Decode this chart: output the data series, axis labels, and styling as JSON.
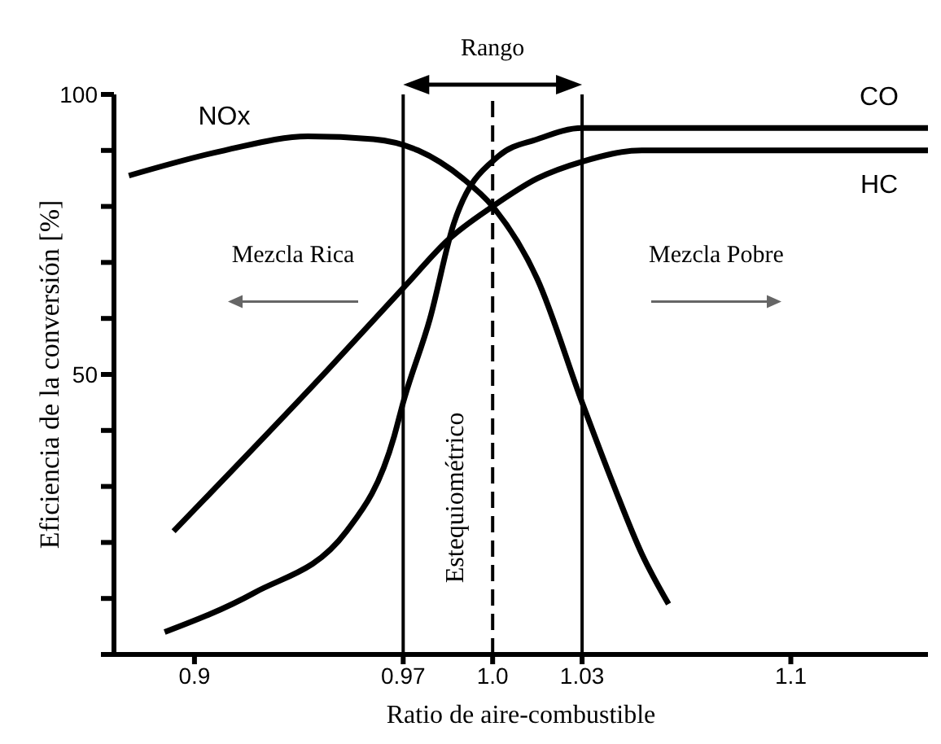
{
  "chart_data": {
    "type": "line",
    "xlabel": "Ratio de aire-combustible",
    "ylabel": "Eficiencia de la conversión [%]",
    "xlim": [
      0.873,
      1.146
    ],
    "ylim": [
      0,
      100
    ],
    "xticks": [
      0.9,
      0.97,
      {
        "value": 1.0,
        "label": "1.0"
      },
      1.03,
      1.1
    ],
    "yticks": [
      {
        "value": 0,
        "label": null
      },
      {
        "value": 10,
        "label": null
      },
      {
        "value": 20,
        "label": null
      },
      {
        "value": 30,
        "label": null
      },
      {
        "value": 40,
        "label": null
      },
      50,
      {
        "value": 60,
        "label": null
      },
      {
        "value": 70,
        "label": null
      },
      {
        "value": 80,
        "label": null
      },
      {
        "value": 90,
        "label": null
      },
      100
    ],
    "series": [
      {
        "name": "NOx",
        "color": "#000000",
        "x": [
          0.878,
          0.91,
          0.938,
          0.96,
          0.975,
          0.99,
          1.0,
          1.015,
          1.03,
          1.04,
          1.05,
          1.059
        ],
        "values": [
          85.5,
          90,
          92.5,
          92,
          90,
          85,
          80,
          67,
          45,
          31,
          18,
          9
        ]
      },
      {
        "name": "CO",
        "color": "#000000",
        "x": [
          0.89,
          0.92,
          0.951,
          0.967,
          0.97,
          0.979,
          0.987,
          1.002,
          1.015,
          1.03,
          1.05,
          1.146
        ],
        "values": [
          4,
          11,
          22,
          39,
          45,
          60,
          77,
          89,
          92,
          94,
          94,
          94
        ]
      },
      {
        "name": "HC",
        "color": "#000000",
        "x": [
          0.893,
          0.945,
          0.971,
          0.985,
          1.0,
          1.015,
          1.03,
          1.05,
          1.146
        ],
        "values": [
          22,
          51,
          66,
          74,
          80,
          85,
          88,
          90,
          90
        ]
      }
    ],
    "ref_lines": [
      {
        "axis": "x",
        "value": 0.97,
        "color": "#000000"
      },
      {
        "axis": "x",
        "value": 1.0,
        "color": "#000000",
        "line_style": "dashed",
        "label": "Estequiométrico"
      },
      {
        "axis": "x",
        "value": 1.03,
        "color": "#000000"
      }
    ],
    "annotations": [
      "Rango",
      "Mezcla Rica",
      "Mezcla Pobre"
    ],
    "grid": false,
    "legend": false,
    "marker": "none",
    "line_style": "solid"
  }
}
